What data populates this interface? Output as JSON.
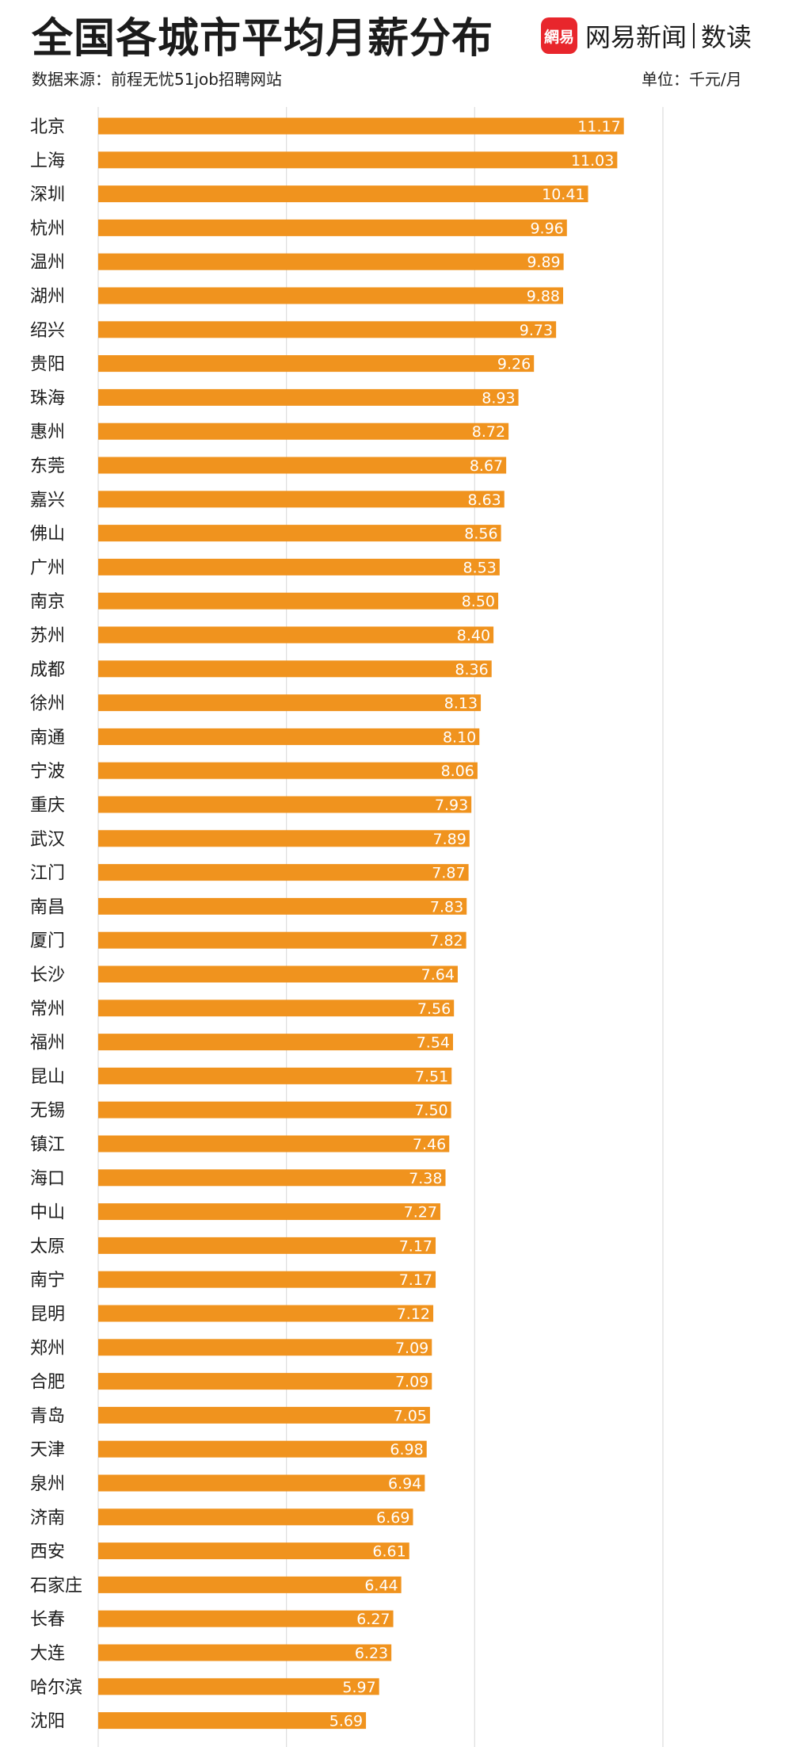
{
  "header": {
    "title": "全国各城市平均月薪分布",
    "source": "数据来源：前程无忧51job招聘网站",
    "unit": "单位：千元/月",
    "brand_logo": "網易",
    "brand_name": "网易新闻",
    "brand_sub": "数读"
  },
  "colors": {
    "bar": "#f0931e",
    "grid": "#dddddd",
    "label_text": "#ffffff"
  },
  "chart_data": {
    "type": "bar",
    "orientation": "horizontal",
    "title": "全国各城市平均月薪分布",
    "xlabel": "",
    "ylabel": "",
    "xlim": [
      0,
      12
    ],
    "grid": true,
    "categories": [
      "北京",
      "上海",
      "深圳",
      "杭州",
      "温州",
      "湖州",
      "绍兴",
      "贵阳",
      "珠海",
      "惠州",
      "东莞",
      "嘉兴",
      "佛山",
      "广州",
      "南京",
      "苏州",
      "成都",
      "徐州",
      "南通",
      "宁波",
      "重庆",
      "武汉",
      "江门",
      "南昌",
      "厦门",
      "长沙",
      "常州",
      "福州",
      "昆山",
      "无锡",
      "镇江",
      "海口",
      "中山",
      "太原",
      "南宁",
      "昆明",
      "郑州",
      "合肥",
      "青岛",
      "天津",
      "泉州",
      "济南",
      "西安",
      "石家庄",
      "长春",
      "大连",
      "哈尔滨",
      "沈阳"
    ],
    "values": [
      11.17,
      11.03,
      10.41,
      9.96,
      9.89,
      9.88,
      9.73,
      9.26,
      8.93,
      8.72,
      8.67,
      8.63,
      8.56,
      8.53,
      8.5,
      8.4,
      8.36,
      8.13,
      8.1,
      8.06,
      7.93,
      7.89,
      7.87,
      7.83,
      7.82,
      7.64,
      7.56,
      7.54,
      7.51,
      7.5,
      7.46,
      7.38,
      7.27,
      7.17,
      7.17,
      7.12,
      7.09,
      7.09,
      7.05,
      6.98,
      6.94,
      6.69,
      6.61,
      6.44,
      6.27,
      6.23,
      5.97,
      5.69
    ],
    "value_labels": [
      "11.17",
      "11.03",
      "10.41",
      "9.96",
      "9.89",
      "9.88",
      "9.73",
      "9.26",
      "8.93",
      "8.72",
      "8.67",
      "8.63",
      "8.56",
      "8.53",
      "8.50",
      "8.40",
      "8.36",
      "8.13",
      "8.10",
      "8.06",
      "7.93",
      "7.89",
      "7.87",
      "7.83",
      "7.82",
      "7.64",
      "7.56",
      "7.54",
      "7.51",
      "7.50",
      "7.46",
      "7.38",
      "7.27",
      "7.17",
      "7.17",
      "7.12",
      "7.09",
      "7.09",
      "7.05",
      "6.98",
      "6.94",
      "6.69",
      "6.61",
      "6.44",
      "6.27",
      "6.23",
      "5.97",
      "5.69"
    ]
  }
}
